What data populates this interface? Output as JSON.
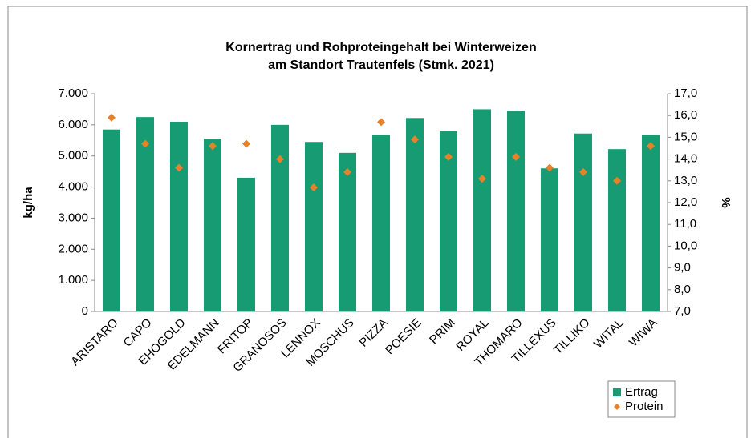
{
  "chart_data": {
    "type": "bar-dot",
    "title": [
      "Kornertrag und Rohproteingehalt bei Winterweizen",
      "am Standort Trautenfels (Stmk. 2021)"
    ],
    "ylabel": "kg/ha",
    "y2label": "%",
    "categories": [
      "ARISTARO",
      "CAPO",
      "EHOGOLD",
      "EDELMANN",
      "FRITOP",
      "GRANOSOS",
      "LENNOX",
      "MOSCHUS",
      "PIZZA",
      "POESIE",
      "PRIM",
      "ROYAL",
      "THOMARO",
      "TILLEXUS",
      "TILLIKO",
      "WITAL",
      "WIWA"
    ],
    "series": [
      {
        "name": "Ertrag",
        "color": "#169b73",
        "values": [
          5850,
          6250,
          6100,
          5550,
          4300,
          6000,
          5450,
          5100,
          5680,
          6220,
          5800,
          6500,
          6450,
          4600,
          5720,
          5220,
          5680
        ]
      },
      {
        "name": "Protein",
        "color": "#e8822a",
        "axis": "y2",
        "values": [
          15.9,
          14.7,
          13.6,
          14.6,
          14.7,
          14.0,
          12.7,
          13.4,
          15.7,
          14.9,
          14.1,
          13.1,
          14.1,
          13.6,
          13.4,
          13.0,
          14.6
        ]
      }
    ],
    "ylim": [
      0,
      7000
    ],
    "yticks": [
      0,
      {
        "value": 1000,
        "label": "1.000"
      },
      {
        "value": 2000,
        "label": "2.000"
      },
      {
        "value": 3000,
        "label": "3.000"
      },
      {
        "value": 4000,
        "label": "4.000"
      },
      {
        "value": 5000,
        "label": "5.000"
      },
      {
        "value": 6000,
        "label": "6.000"
      },
      {
        "value": 7000,
        "label": "7.000"
      }
    ],
    "y2lim": [
      7,
      17
    ],
    "y2ticks": [
      {
        "value": 7,
        "label": "7,0"
      },
      {
        "value": 8,
        "label": "8,0"
      },
      {
        "value": 9,
        "label": "9,0"
      },
      {
        "value": 10,
        "label": "10,0"
      },
      {
        "value": 11,
        "label": "11,0"
      },
      {
        "value": 12,
        "label": "12,0"
      },
      {
        "value": 13,
        "label": "13,0"
      },
      {
        "value": 14,
        "label": "14,0"
      },
      {
        "value": 15,
        "label": "15,0"
      },
      {
        "value": 16,
        "label": "16,0"
      },
      {
        "value": 17,
        "label": "17,0"
      }
    ],
    "legend": "bottom-right"
  }
}
